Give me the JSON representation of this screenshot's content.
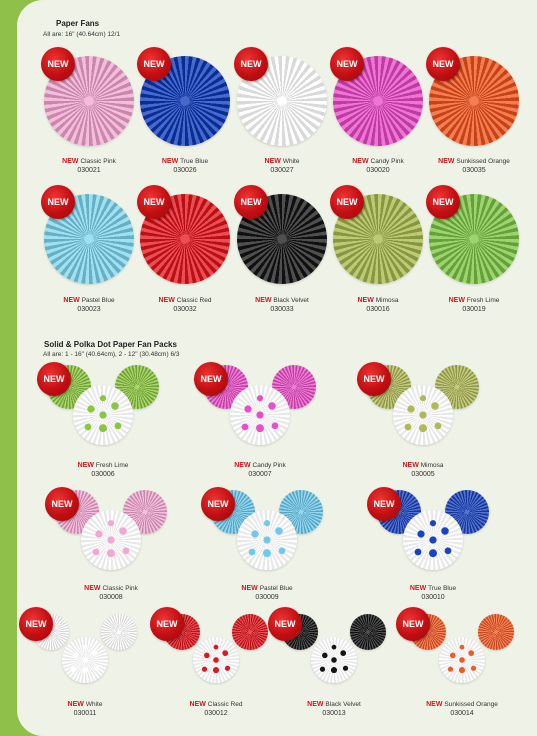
{
  "section1": {
    "title": "Paper Fans",
    "subtitle": "All are: 16\" (40.64cm)   12/1"
  },
  "section2": {
    "title": "Solid & Polka Dot Paper Fan Packs",
    "subtitle": "All are:  1 - 16\" (40.64cm), 2 - 12\" (30.48cm)   6/3"
  },
  "badge_text": "NEW",
  "fans": [
    {
      "name": "Classic Pink",
      "code": "030021",
      "color": "#f3a6d0",
      "badge": "NEW"
    },
    {
      "name": "True Blue",
      "code": "030026",
      "color": "#0a37b8",
      "badge": "NEW"
    },
    {
      "name": "White",
      "code": "030027",
      "color": "#ffffff",
      "badge": "NEW"
    },
    {
      "name": "Candy Pink",
      "code": "030020",
      "color": "#e947c6",
      "badge": "NEW"
    },
    {
      "name": "Sunkissed Orange",
      "code": "030035",
      "color": "#f0521a",
      "badge": "NEW"
    },
    {
      "name": "Pastel Blue",
      "code": "030023",
      "color": "#7fd6ef",
      "badge": "NEW"
    },
    {
      "name": "Classic Red",
      "code": "030032",
      "color": "#e3121a",
      "badge": "NEW"
    },
    {
      "name": "Black Velvet",
      "code": "030033",
      "color": "#141414",
      "badge": "NEW"
    },
    {
      "name": "Mimosa",
      "code": "030016",
      "color": "#a6b84a",
      "badge": "NEW"
    },
    {
      "name": "Fresh Lime",
      "code": "030019",
      "color": "#7cc443",
      "badge": "NEW"
    }
  ],
  "packs": [
    {
      "name": "Fresh Lime",
      "code": "030006",
      "color": "#8cc63f",
      "badge": "NEW"
    },
    {
      "name": "Candy Pink",
      "code": "030007",
      "color": "#e94fc8",
      "badge": "NEW"
    },
    {
      "name": "Mimosa",
      "code": "030005",
      "color": "#b0b857",
      "badge": "NEW"
    },
    {
      "name": "Classic Pink",
      "code": "030008",
      "color": "#f3a8d3",
      "badge": "NEW"
    },
    {
      "name": "Pastel Blue",
      "code": "030009",
      "color": "#6ec9ec",
      "badge": "NEW"
    },
    {
      "name": "True Blue",
      "code": "030010",
      "color": "#1b43c0",
      "badge": "NEW"
    },
    {
      "name": "White",
      "code": "030011",
      "color": "#ffffff",
      "badge": "NEW"
    },
    {
      "name": "Classic Red",
      "code": "030012",
      "color": "#e0161d",
      "badge": "NEW"
    },
    {
      "name": "Black Velvet",
      "code": "030013",
      "color": "#151515",
      "badge": "NEW"
    },
    {
      "name": "Sunkissed Orange",
      "code": "030014",
      "color": "#f25a24",
      "badge": "NEW"
    }
  ]
}
